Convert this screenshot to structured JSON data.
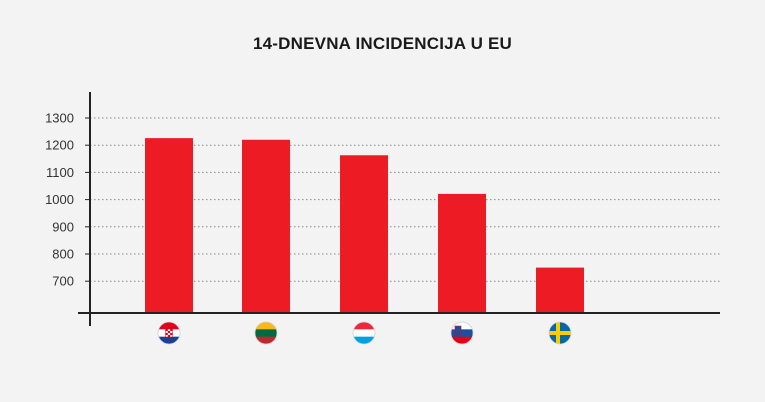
{
  "chart_data": {
    "type": "bar",
    "title": "14-DNEVNA INCIDENCIJA U EU",
    "categories": [
      "Croatia",
      "Lithuania",
      "Luxembourg",
      "Slovenia",
      "Sweden"
    ],
    "category_icons": [
      "flag-croatia-icon",
      "flag-lithuania-icon",
      "flag-luxembourg-icon",
      "flag-slovenia-icon",
      "flag-sweden-icon"
    ],
    "values": [
      1226,
      1220,
      1163,
      1021,
      750
    ],
    "yticks": [
      700,
      800,
      900,
      1000,
      1100,
      1200,
      1300
    ],
    "ylim": [
      580,
      1350
    ],
    "bar_color": "#ed1c24",
    "grid": "dotted horizontal",
    "xlabel": "",
    "ylabel": ""
  }
}
